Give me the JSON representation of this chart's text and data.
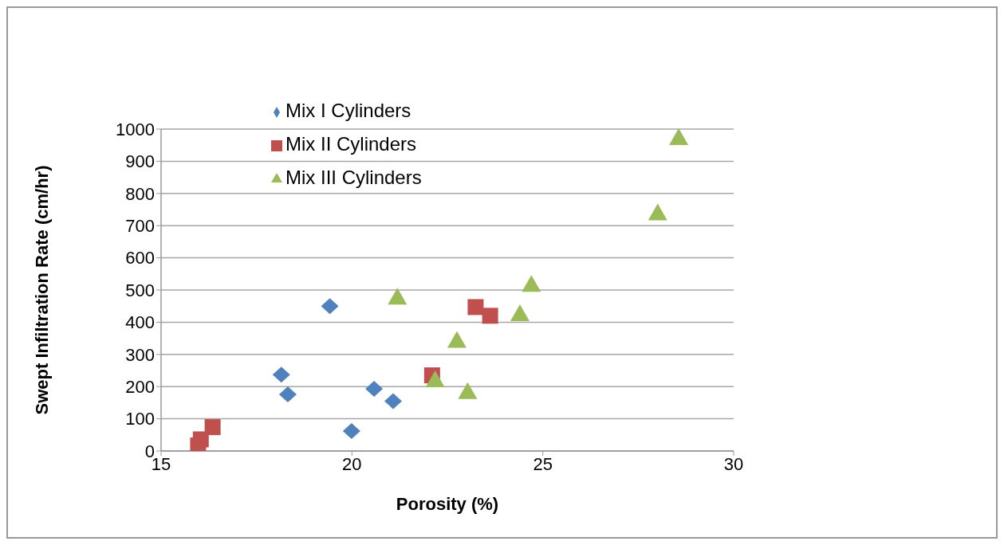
{
  "chart_data": {
    "type": "scatter",
    "xlabel": "Porosity (%)",
    "ylabel": "Swept Infiltration Rate (cm/hr)",
    "xlim": [
      15,
      30
    ],
    "xticks": [
      15,
      20,
      25,
      30
    ],
    "ylim": [
      0,
      1000
    ],
    "yticks": [
      0,
      100,
      200,
      300,
      400,
      500,
      600,
      700,
      800,
      900,
      1000
    ],
    "grid": "y",
    "legend": "top left",
    "series": [
      {
        "name": "Mix I Cylinders",
        "color": "#4f81bd",
        "marker": "diamond",
        "x": [
          19.42,
          18.15,
          18.32,
          19.99,
          20.58,
          21.08
        ],
        "values": [
          450,
          237,
          176,
          62,
          193,
          155
        ]
      },
      {
        "name": "Mix II Cylinders",
        "color": "#c0504d",
        "marker": "square",
        "x": [
          15.97,
          16.04,
          16.35,
          22.1,
          23.24,
          23.62
        ],
        "values": [
          17,
          36,
          74,
          235,
          447,
          420
        ]
      },
      {
        "name": "Mix III Cylinders",
        "color": "#9bbb59",
        "marker": "triangle",
        "x": [
          28.56,
          28.01,
          21.19,
          24.7,
          24.4,
          22.75,
          22.18,
          23.03
        ],
        "values": [
          973,
          739,
          477,
          517,
          426,
          343,
          220,
          184
        ]
      }
    ]
  }
}
